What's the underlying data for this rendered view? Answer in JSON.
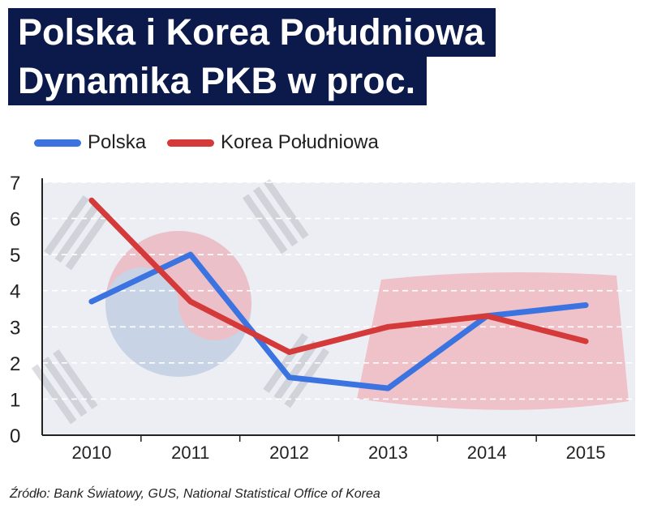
{
  "chart_data": {
    "type": "line",
    "title_lines": [
      "Polska i Korea Południowa",
      "Dynamika PKB w proc."
    ],
    "categories": [
      "2010",
      "2011",
      "2012",
      "2013",
      "2014",
      "2015"
    ],
    "series": [
      {
        "name": "Polska",
        "color": "#3b74e0",
        "values": [
          3.7,
          5.0,
          1.6,
          1.3,
          3.3,
          3.6
        ]
      },
      {
        "name": "Korea Południowa",
        "color": "#d43a3a",
        "values": [
          6.5,
          3.7,
          2.3,
          3.0,
          3.3,
          2.6
        ]
      }
    ],
    "ylim": [
      0,
      7
    ],
    "yticks": [
      "0",
      "1",
      "2",
      "3",
      "4",
      "5",
      "6",
      "7"
    ],
    "grid": true,
    "legend_position": "top-left",
    "background_decor": [
      "flag-of-south-korea",
      "flag-of-poland"
    ]
  },
  "source": "Źródło: Bank Światowy, GUS, National Statistical Office of Korea"
}
